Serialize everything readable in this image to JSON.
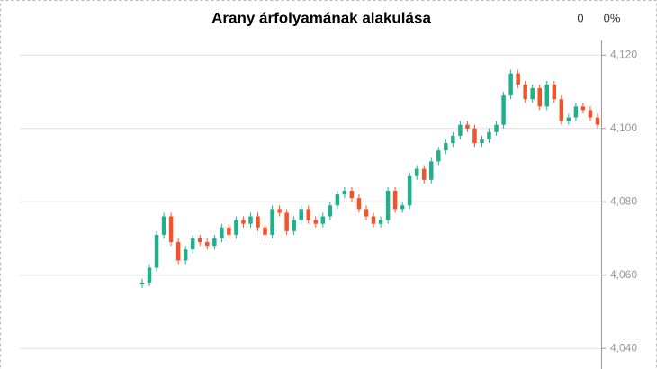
{
  "chart_data": {
    "type": "candlestick",
    "title": "Arany árfolyamának alakulása",
    "header_values": [
      "0",
      "0%"
    ],
    "up_color": "#22b08c",
    "down_color": "#f1542c",
    "open": [
      4057.5,
      4058,
      4062,
      4071,
      4076,
      4069,
      4064,
      4067,
      4070,
      4069,
      4068,
      4070,
      4073,
      4071,
      4075,
      4074,
      4076,
      4073,
      4071,
      4078,
      4077,
      4072,
      4075,
      4078,
      4075,
      4074,
      4076,
      4079,
      4082,
      4083,
      4081,
      4078,
      4076,
      4074,
      4075,
      4083,
      4078,
      4079,
      4087,
      4089,
      4086,
      4091,
      4094,
      4096,
      4098,
      4101,
      4100,
      4096,
      4097,
      4099,
      4101,
      4109,
      4115,
      4112,
      4108,
      4111,
      4106,
      4112,
      4108,
      4102,
      4103,
      4106,
      4105,
      4103
    ],
    "close": [
      4058,
      4062,
      4071,
      4076,
      4069,
      4064,
      4067,
      4070,
      4069,
      4068,
      4070,
      4073,
      4071,
      4075,
      4074,
      4076,
      4073,
      4071,
      4078,
      4077,
      4072,
      4075,
      4078,
      4075,
      4074,
      4076,
      4079,
      4082,
      4083,
      4081,
      4078,
      4076,
      4074,
      4075,
      4083,
      4078,
      4079,
      4087,
      4089,
      4086,
      4091,
      4094,
      4096,
      4098,
      4101,
      4100,
      4096,
      4097,
      4099,
      4101,
      4109,
      4115,
      4112,
      4108,
      4111,
      4106,
      4112,
      4108,
      4102,
      4103,
      4106,
      4105,
      4103,
      4101
    ],
    "high": [
      4059,
      4063,
      4072,
      4077,
      4077,
      4070,
      4068,
      4071,
      4071,
      4070,
      4071,
      4074,
      4074,
      4076,
      4076,
      4077,
      4077,
      4074,
      4079,
      4079,
      4078,
      4076,
      4079,
      4079,
      4076,
      4077,
      4080,
      4083,
      4084,
      4084,
      4082,
      4079,
      4077,
      4076,
      4084,
      4084,
      4080,
      4088,
      4090,
      4090,
      4092,
      4095,
      4097,
      4099,
      4102,
      4102,
      4101,
      4098,
      4100,
      4102,
      4110,
      4116,
      4116,
      4113,
      4112,
      4112,
      4113,
      4113,
      4109,
      4104,
      4107,
      4107,
      4106,
      4104
    ],
    "low": [
      4056.5,
      4057,
      4061,
      4070,
      4068,
      4063,
      4063,
      4066,
      4068,
      4067,
      4067,
      4069,
      4070,
      4070,
      4073,
      4073,
      4072,
      4070,
      4070,
      4076,
      4071,
      4071,
      4074,
      4074,
      4073,
      4073,
      4075,
      4078,
      4081,
      4080,
      4077,
      4075,
      4073,
      4073,
      4074,
      4077,
      4077,
      4078,
      4086,
      4085,
      4085,
      4090,
      4093,
      4095,
      4097,
      4099,
      4095,
      4095,
      4096,
      4098,
      4100,
      4108,
      4111,
      4107,
      4107,
      4105,
      4105,
      4107,
      4101,
      4101,
      4102,
      4104,
      4102,
      4100
    ],
    "ylim": [
      4034.4,
      4124
    ],
    "yticks": [
      {
        "value": 4040,
        "label": "4,040"
      },
      {
        "value": 4060,
        "label": "4,060"
      },
      {
        "value": 4080,
        "label": "4,080"
      },
      {
        "value": 4100,
        "label": "4,100"
      },
      {
        "value": 4120,
        "label": "4,120"
      }
    ],
    "grid": true
  }
}
